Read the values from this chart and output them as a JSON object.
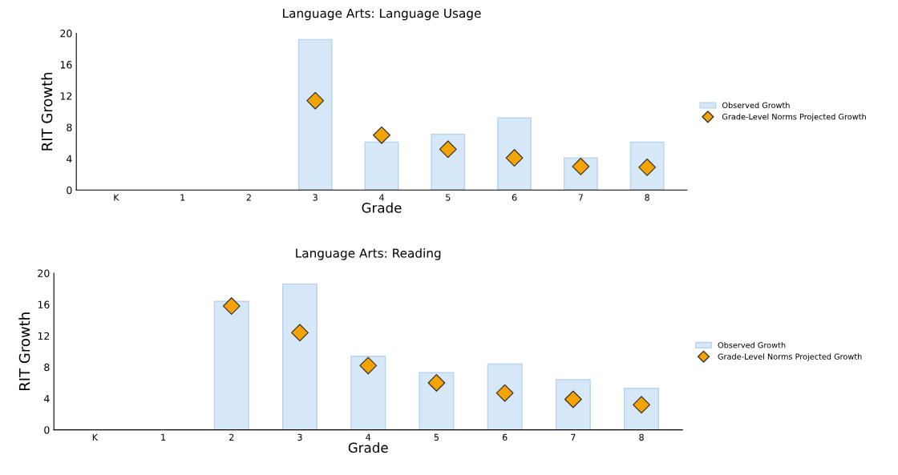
{
  "chart_data": [
    {
      "type": "bar",
      "title": "Language Arts: Language Usage",
      "xlabel": "Grade",
      "ylabel": "RIT Growth",
      "categories": [
        "K",
        "1",
        "2",
        "3",
        "4",
        "5",
        "6",
        "7",
        "8"
      ],
      "ylim": [
        0,
        20
      ],
      "yticks": [
        0,
        4,
        8,
        12,
        16,
        20
      ],
      "legend": "right",
      "series": [
        {
          "name": "Observed Growth",
          "color": "#d6e8f8",
          "values": [
            null,
            null,
            null,
            19.2,
            6.1,
            7.1,
            9.2,
            4.1,
            6.1
          ]
        },
        {
          "name": "Grade-Level Norms Projected Growth",
          "type": "scatter",
          "marker": "diamond",
          "color": "#f5a300",
          "values": [
            null,
            null,
            null,
            11.4,
            7.0,
            5.2,
            4.1,
            3.0,
            2.9
          ]
        }
      ]
    },
    {
      "type": "bar",
      "title": "Language Arts: Reading",
      "xlabel": "Grade",
      "ylabel": "RIT Growth",
      "categories": [
        "K",
        "1",
        "2",
        "3",
        "4",
        "5",
        "6",
        "7",
        "8"
      ],
      "ylim": [
        0,
        20
      ],
      "yticks": [
        0,
        4,
        8,
        12,
        16,
        20
      ],
      "legend": "right",
      "series": [
        {
          "name": "Observed Growth",
          "color": "#d6e8f8",
          "values": [
            null,
            null,
            16.4,
            18.6,
            9.4,
            7.3,
            8.4,
            6.4,
            5.3
          ]
        },
        {
          "name": "Grade-Level Norms Projected Growth",
          "type": "scatter",
          "marker": "diamond",
          "color": "#f5a300",
          "values": [
            null,
            null,
            15.8,
            12.4,
            8.2,
            6.0,
            4.7,
            3.9,
            3.2
          ]
        }
      ]
    }
  ]
}
